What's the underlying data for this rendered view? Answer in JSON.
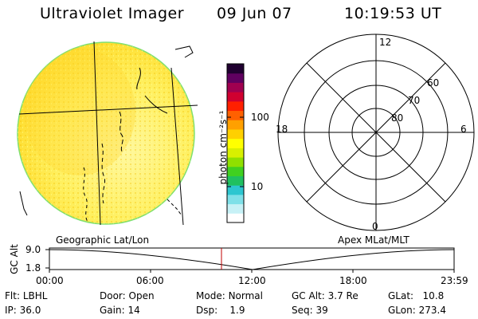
{
  "header": {
    "title": "Ultraviolet Imager",
    "date": "09 Jun 07",
    "time": "10:19:53 UT"
  },
  "colorbar": {
    "unit_label": "photon cm⁻²s⁻¹",
    "ticks": [
      {
        "label": "100",
        "value": 100
      },
      {
        "label": "10",
        "value": 10
      }
    ],
    "colors": [
      "#ffffff",
      "#c7f1f6",
      "#7fe0e8",
      "#2dc6d0",
      "#20c060",
      "#40d020",
      "#90e000",
      "#d8f000",
      "#ffff00",
      "#ffd000",
      "#ffa000",
      "#ff6000",
      "#ff2000",
      "#d00030",
      "#a00050",
      "#600060",
      "#200030"
    ]
  },
  "polar_plot": {
    "hour_labels": {
      "top": "12",
      "left": "18",
      "right": "6",
      "bottom": "0"
    },
    "lat_labels": [
      "60",
      "70",
      "80"
    ]
  },
  "panel_labels": {
    "left": "Geographic Lat/Lon",
    "right": "Apex MLat/MLT"
  },
  "altitude_strip": {
    "axis_title": "GC Alt",
    "y_ticks": [
      "9.0",
      "1.8"
    ],
    "x_ticks": [
      "00:00",
      "06:00",
      "12:00",
      "18:00",
      "23:59"
    ]
  },
  "info": {
    "filter": {
      "label": "Flt:",
      "value": "LBHL"
    },
    "door": {
      "label": "Door:",
      "value": "Open"
    },
    "mode": {
      "label": "Mode:",
      "value": "Normal"
    },
    "gc_alt": {
      "label": "GC Alt:",
      "value": "3.7 Re"
    },
    "glat": {
      "label": "GLat:",
      "value": "10.8"
    },
    "ip": {
      "label": "IP:",
      "value": "36.0"
    },
    "gain": {
      "label": "Gain:",
      "value": "14"
    },
    "dsp": {
      "label": "Dsp:",
      "value": "1.9"
    },
    "seq": {
      "label": "Seq:",
      "value": "39"
    },
    "glon": {
      "label": "GLon:",
      "value": "273.4"
    }
  }
}
